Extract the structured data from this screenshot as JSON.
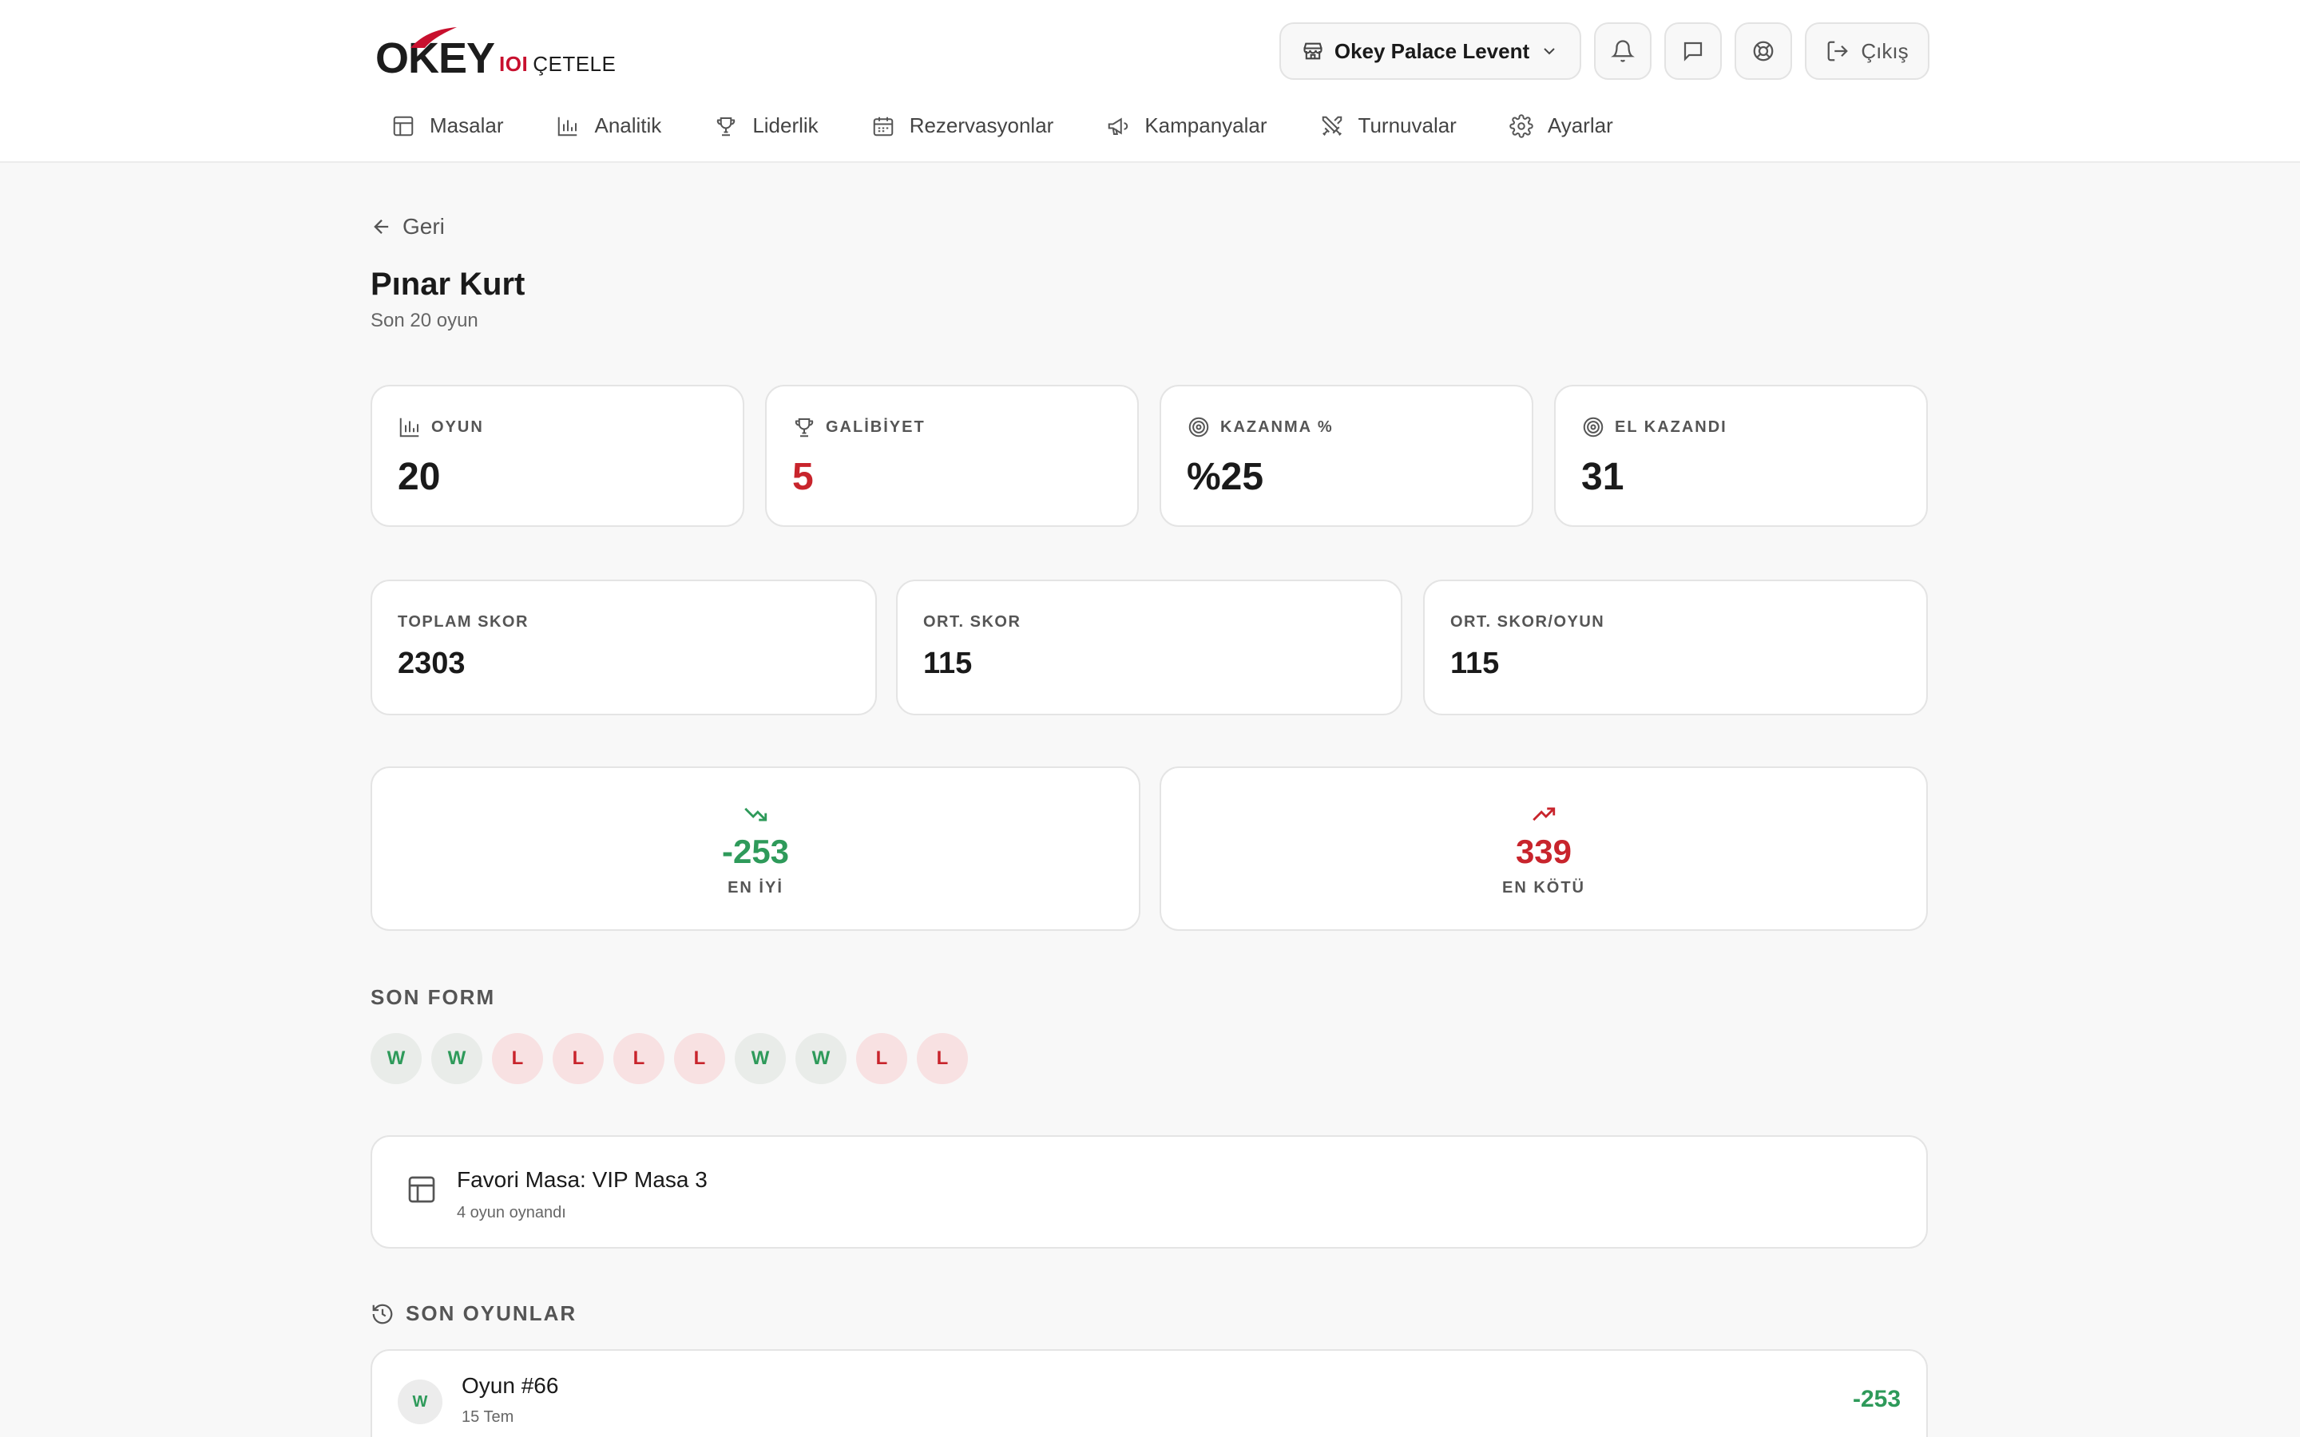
{
  "brand": {
    "logo_text": "OKEY",
    "logo_ioi": "IOI",
    "logo_sub": "ÇETELE",
    "accent": "#c8102e"
  },
  "header": {
    "venue": "Okey Palace Levent",
    "logout_label": "Çıkış",
    "icons": [
      "store-icon",
      "chevron-down-icon",
      "bell-icon",
      "chat-icon",
      "support-icon",
      "logout-icon"
    ]
  },
  "nav": {
    "items": [
      {
        "label": "Masalar",
        "icon": "table-icon"
      },
      {
        "label": "Analitik",
        "icon": "bar-chart-icon"
      },
      {
        "label": "Liderlik",
        "icon": "trophy-icon"
      },
      {
        "label": "Rezervasyonlar",
        "icon": "calendar-icon"
      },
      {
        "label": "Kampanyalar",
        "icon": "megaphone-icon"
      },
      {
        "label": "Turnuvalar",
        "icon": "swords-icon"
      },
      {
        "label": "Ayarlar",
        "icon": "gear-icon"
      }
    ]
  },
  "page": {
    "back_label": "Geri",
    "title": "Pınar Kurt",
    "subtitle": "Son 20 oyun"
  },
  "stats": [
    {
      "label": "OYUN",
      "value": "20",
      "icon": "bar-chart-icon"
    },
    {
      "label": "GALİBİYET",
      "value": "5",
      "icon": "trophy-icon"
    },
    {
      "label": "KAZANMA %",
      "value": "%25",
      "icon": "target-icon"
    },
    {
      "label": "EL KAZANDI",
      "value": "31",
      "icon": "target-icon"
    }
  ],
  "scores": [
    {
      "label": "TOPLAM SKOR",
      "value": "2303"
    },
    {
      "label": "ORT. SKOR",
      "value": "115"
    },
    {
      "label": "ORT. SKOR/OYUN",
      "value": "115"
    }
  ],
  "best": {
    "value": "-253",
    "label": "EN İYİ",
    "icon": "trending-down-icon"
  },
  "worst": {
    "value": "339",
    "label": "EN KÖTÜ",
    "icon": "trending-up-icon"
  },
  "form": {
    "label": "SON FORM",
    "results": [
      "W",
      "W",
      "L",
      "L",
      "L",
      "L",
      "W",
      "W",
      "L",
      "L"
    ]
  },
  "favorite": {
    "title": "Favori Masa: VIP Masa 3",
    "subtitle": "4 oyun oynandı"
  },
  "recent": {
    "label": "SON OYUNLAR",
    "games": [
      {
        "result": "W",
        "title": "Oyun #66",
        "date": "15 Tem",
        "score": "-253"
      }
    ]
  },
  "colors": {
    "win": "#2e9a5a",
    "loss": "#c8242c"
  }
}
